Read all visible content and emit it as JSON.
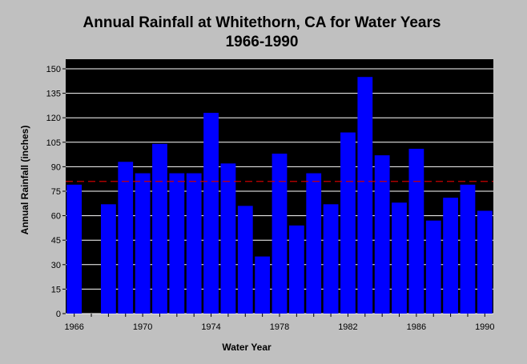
{
  "chart_data": {
    "type": "bar",
    "title_line1": "Annual Rainfall at Whitethorn, CA for Water Years",
    "title_line2": "1966-1990",
    "xlabel": "Water Year",
    "ylabel": "Annual Rainfall (inches)",
    "ylim": [
      0,
      150
    ],
    "yticks": [
      0,
      15,
      30,
      45,
      60,
      75,
      90,
      105,
      120,
      135,
      150
    ],
    "xticks": [
      1966,
      1970,
      1974,
      1978,
      1982,
      1986,
      1990
    ],
    "xlim": [
      1965.5,
      1990.5
    ],
    "grid": "horizontal",
    "categories": [
      1966,
      1967,
      1968,
      1969,
      1970,
      1971,
      1972,
      1973,
      1974,
      1975,
      1976,
      1977,
      1978,
      1979,
      1980,
      1981,
      1982,
      1983,
      1984,
      1985,
      1986,
      1987,
      1988,
      1989,
      1990
    ],
    "values": [
      79,
      null,
      67,
      93,
      86,
      104,
      86,
      86,
      123,
      92,
      66,
      35,
      98,
      54,
      86,
      67,
      111,
      145,
      97,
      68,
      101,
      57,
      71,
      79,
      63
    ],
    "reference_line": {
      "value": 81,
      "style": "dashed"
    },
    "colors": {
      "bar": "#0000ff",
      "reference_line": "#cc0000",
      "plot_background": "#000000"
    }
  }
}
